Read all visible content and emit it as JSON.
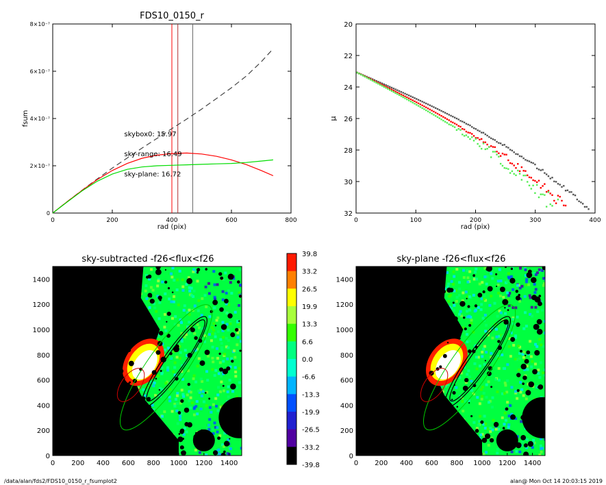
{
  "footer": {
    "path": "/data/alan/fds2/FDS10_0150_r_fsumplot2",
    "stamp": "alan@  Mon Oct 14 20:03:15 2019"
  },
  "colorbar": {
    "labels": [
      "39.8",
      "33.2",
      "26.5",
      "19.9",
      "13.3",
      "6.6",
      "0.0",
      "-6.6",
      "-13.3",
      "-19.9",
      "-26.5",
      "-33.2",
      "-39.8"
    ],
    "colors": [
      "#ff1a00",
      "#ff8000",
      "#ffff00",
      "#a8ff3c",
      "#33ff00",
      "#00ff80",
      "#00ffd0",
      "#00b4ff",
      "#0050ff",
      "#2020d0",
      "#5000a0",
      "#000000"
    ]
  },
  "chart_data": [
    {
      "type": "line",
      "title": "FDS10_0150_r",
      "xlabel": "rad (pix)",
      "ylabel": "fsum",
      "xlim": [
        0,
        800
      ],
      "ylim": [
        0,
        8e-07
      ],
      "xticks": [
        "0",
        "200",
        "400",
        "600",
        "800"
      ],
      "yticks": [
        "0",
        "2×10⁻⁷",
        "4×10⁻⁷",
        "6×10⁻⁷",
        "8×10⁻⁷"
      ],
      "ytick_values": [
        0,
        2e-07,
        4e-07,
        6e-07,
        8e-07
      ],
      "vlines": [
        {
          "x": 400,
          "color": "#ff0000"
        },
        {
          "x": 420,
          "color": "#b03030"
        },
        {
          "x": 470,
          "color": "#666666"
        }
      ],
      "annotations": [
        {
          "text": "skybox0: 15.97",
          "x": 240,
          "y": 3.25e-07,
          "color": "#000000"
        },
        {
          "text": "sky-range: 16.49",
          "x": 240,
          "y": 2.4e-07,
          "color": "#ff0000"
        },
        {
          "text": "sky-plane: 16.72",
          "x": 240,
          "y": 1.55e-07,
          "color": "#00cc00"
        }
      ],
      "series": [
        {
          "color": "#444444",
          "dash": true,
          "x": [
            0,
            50,
            100,
            150,
            200,
            250,
            300,
            350,
            400,
            450,
            500,
            550,
            600,
            650,
            700,
            740
          ],
          "y": [
            0,
            5e-08,
            9.8e-08,
            1.45e-07,
            1.9e-07,
            2.33e-07,
            2.75e-07,
            3.16e-07,
            3.57e-07,
            3.98e-07,
            4.4e-07,
            4.85e-07,
            5.3e-07,
            5.8e-07,
            6.4e-07,
            6.95e-07
          ]
        },
        {
          "color": "#ff0000",
          "x": [
            0,
            50,
            100,
            150,
            200,
            250,
            300,
            350,
            400,
            450,
            500,
            550,
            600,
            650,
            700,
            740
          ],
          "y": [
            0,
            5e-08,
            9.7e-08,
            1.42e-07,
            1.8e-07,
            2.1e-07,
            2.32e-07,
            2.45e-07,
            2.52e-07,
            2.54e-07,
            2.5e-07,
            2.4e-07,
            2.25e-07,
            2.05e-07,
            1.8e-07,
            1.58e-07
          ]
        },
        {
          "color": "#00dd00",
          "x": [
            0,
            50,
            100,
            150,
            200,
            250,
            300,
            350,
            400,
            450,
            500,
            550,
            600,
            650,
            700,
            740
          ],
          "y": [
            0,
            4.8e-08,
            9.5e-08,
            1.35e-07,
            1.65e-07,
            1.85e-07,
            1.95e-07,
            2e-07,
            2.02e-07,
            2.04e-07,
            2.06e-07,
            2.08e-07,
            2.1e-07,
            2.14e-07,
            2.2e-07,
            2.25e-07
          ]
        }
      ]
    },
    {
      "type": "scatter",
      "title": "",
      "xlabel": "rad (pix)",
      "ylabel": "μ",
      "xlim": [
        0,
        400
      ],
      "ylim": [
        32,
        20
      ],
      "xticks": [
        "0",
        "100",
        "200",
        "300",
        "400"
      ],
      "yticks": [
        "20",
        "22",
        "24",
        "26",
        "28",
        "30",
        "32"
      ],
      "series": [
        {
          "color": "#555555",
          "a": 23.05,
          "b": 0.0165,
          "c": 0.5
        },
        {
          "color": "#ff0000",
          "a": 23.05,
          "b": 0.0185,
          "c": 0.64
        },
        {
          "color": "#55ee55",
          "a": 23.05,
          "b": 0.02,
          "c": 0.7
        }
      ]
    },
    {
      "type": "heatmap",
      "title": "sky-subtracted -f26<flux<f26",
      "xlim": [
        0,
        1500
      ],
      "ylim": [
        0,
        1500
      ],
      "xticks": [
        "0",
        "200",
        "400",
        "600",
        "800",
        "1000",
        "1200",
        "1400"
      ],
      "yticks": [
        "0",
        "200",
        "400",
        "600",
        "800",
        "1000",
        "1200",
        "1400"
      ]
    },
    {
      "type": "heatmap",
      "title": "sky-plane -f26<flux<f26",
      "xlim": [
        0,
        1500
      ],
      "ylim": [
        0,
        1500
      ],
      "xticks": [
        "0",
        "200",
        "400",
        "600",
        "800",
        "1000",
        "1200",
        "1400"
      ],
      "yticks": [
        "0",
        "200",
        "400",
        "600",
        "800",
        "1000",
        "1200",
        "1400"
      ]
    }
  ]
}
